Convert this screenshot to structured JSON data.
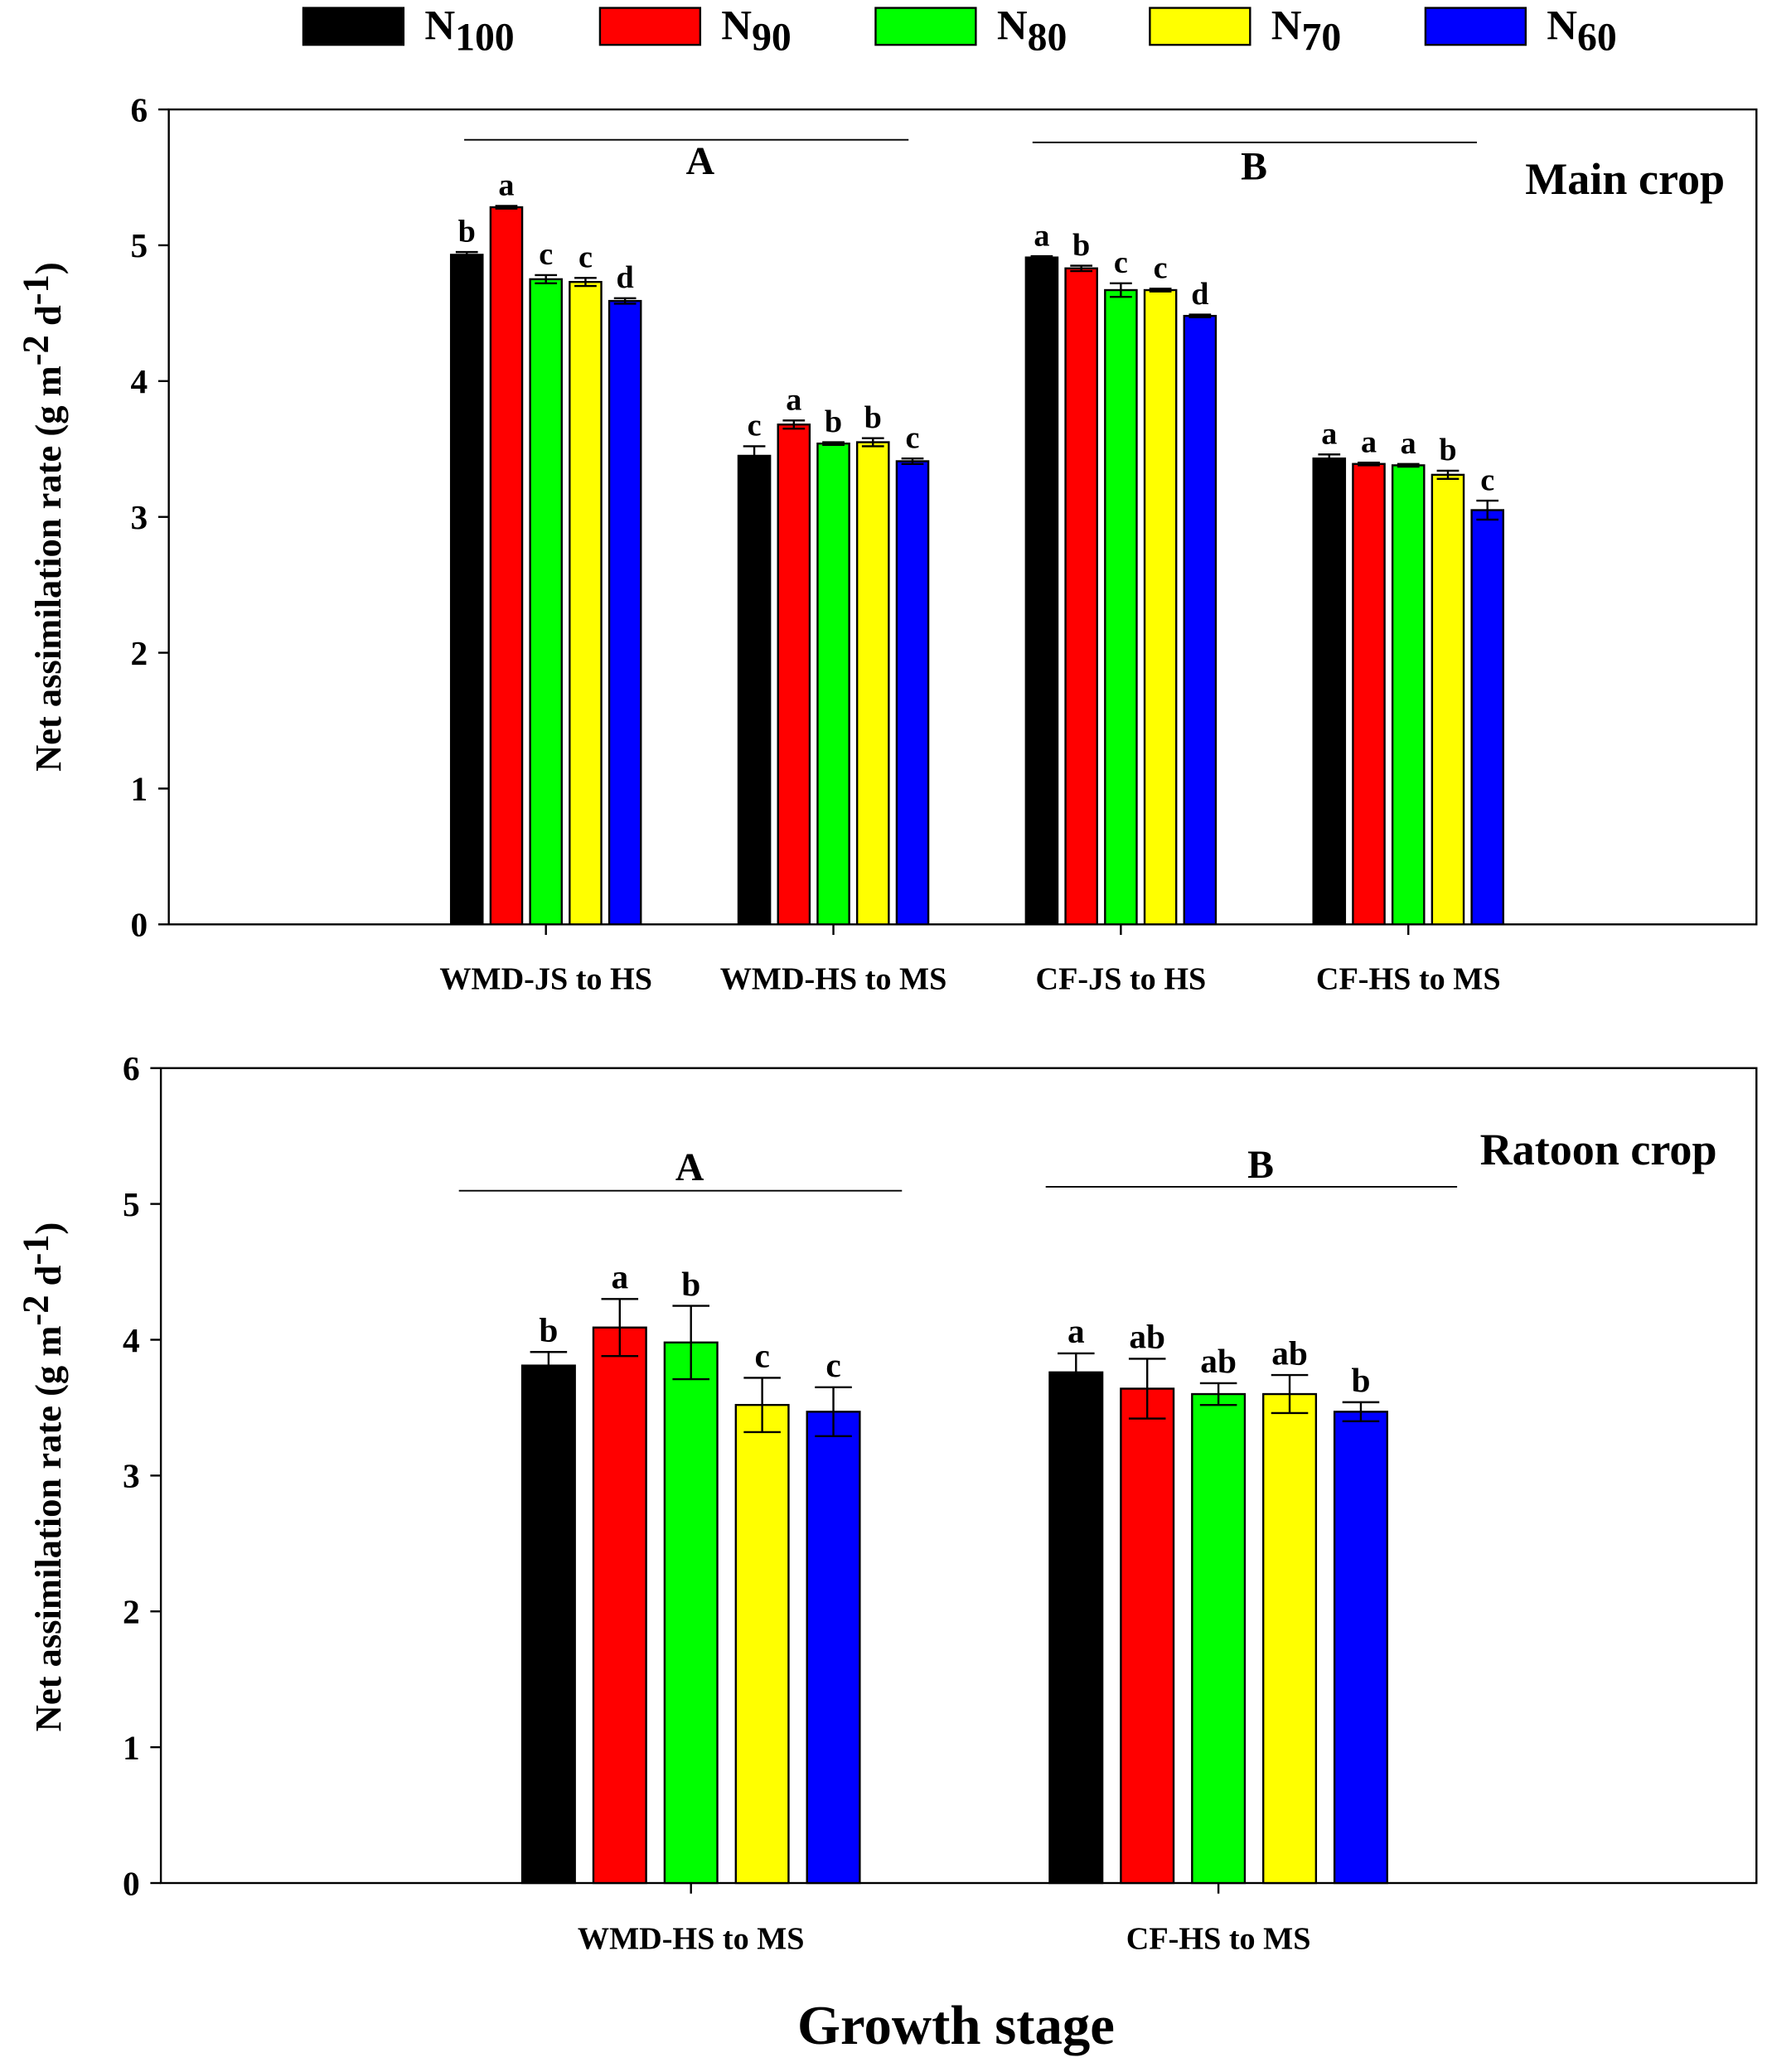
{
  "chart_data": [
    {
      "type": "bar",
      "title": "Main crop",
      "ylabel": "Net assimilation rate (g m-2 d-1)",
      "ylabel_parts": {
        "main": "Net assimilation rate (g m",
        "exp1": "-2",
        "mid": " d",
        "exp2": "-1",
        "end": ")"
      },
      "ylim": [
        0,
        6
      ],
      "yticks": [
        "0",
        "1",
        "2",
        "3",
        "4",
        "5",
        "6"
      ],
      "categories": [
        "WMD-JS to HS",
        "WMD-HS to MS",
        "CF-JS to HS",
        "CF-HS to MS"
      ],
      "group_labels": [
        {
          "label": "A",
          "covers": [
            0,
            1
          ]
        },
        {
          "label": "B",
          "covers": [
            2,
            3
          ]
        }
      ],
      "series": [
        {
          "name": "N100",
          "color": "#000000",
          "values": [
            4.93,
            3.45,
            4.91,
            3.43
          ],
          "errors": [
            0.02,
            0.07,
            0.01,
            0.03
          ],
          "letters": [
            "b",
            "c",
            "a",
            "a"
          ]
        },
        {
          "name": "N90",
          "color": "#ff0000",
          "values": [
            5.28,
            3.68,
            4.83,
            3.39
          ],
          "errors": [
            0.01,
            0.03,
            0.02,
            0.01
          ],
          "letters": [
            "a",
            "a",
            "b",
            "a"
          ]
        },
        {
          "name": "N80",
          "color": "#00ff00",
          "values": [
            4.75,
            3.54,
            4.67,
            3.38
          ],
          "errors": [
            0.03,
            0.01,
            0.05,
            0.01
          ],
          "letters": [
            "c",
            "b",
            "c",
            "a"
          ]
        },
        {
          "name": "N70",
          "color": "#ffff00",
          "values": [
            4.73,
            3.55,
            4.67,
            3.31
          ],
          "errors": [
            0.03,
            0.03,
            0.01,
            0.03
          ],
          "letters": [
            "c",
            "b",
            "c",
            "b"
          ]
        },
        {
          "name": "N60",
          "color": "#0000ff",
          "values": [
            4.59,
            3.41,
            4.48,
            3.05
          ],
          "errors": [
            0.02,
            0.02,
            0.01,
            0.07
          ],
          "letters": [
            "d",
            "c",
            "d",
            "c"
          ]
        }
      ]
    },
    {
      "type": "bar",
      "title": "Ratoon crop",
      "ylabel": "Net assimilation rate (g m-2 d-1)",
      "ylabel_parts": {
        "main": "Net assimilation rate (g m",
        "exp1": "-2",
        "mid": " d",
        "exp2": "-1",
        "end": ")"
      },
      "xlabel": "Growth stage",
      "ylim": [
        0,
        6
      ],
      "yticks": [
        "0",
        "1",
        "2",
        "3",
        "4",
        "5",
        "6"
      ],
      "categories": [
        "WMD-HS to MS",
        "CF-HS to MS"
      ],
      "group_labels": [
        {
          "label": "A",
          "covers": [
            0
          ]
        },
        {
          "label": "B",
          "covers": [
            1
          ]
        }
      ],
      "series": [
        {
          "name": "N100",
          "color": "#000000",
          "values": [
            3.81,
            3.76
          ],
          "errors": [
            0.1,
            0.14
          ],
          "letters": [
            "b",
            "a"
          ]
        },
        {
          "name": "N90",
          "color": "#ff0000",
          "values": [
            4.09,
            3.64
          ],
          "errors": [
            0.21,
            0.22
          ],
          "letters": [
            "a",
            "ab"
          ]
        },
        {
          "name": "N80",
          "color": "#00ff00",
          "values": [
            3.98,
            3.6
          ],
          "errors": [
            0.27,
            0.08
          ],
          "letters": [
            "b",
            "ab"
          ]
        },
        {
          "name": "N70",
          "color": "#ffff00",
          "values": [
            3.52,
            3.6
          ],
          "errors": [
            0.2,
            0.14
          ],
          "letters": [
            "c",
            "ab"
          ]
        },
        {
          "name": "N60",
          "color": "#0000ff",
          "values": [
            3.47,
            3.47
          ],
          "errors": [
            0.18,
            0.07
          ],
          "letters": [
            "c",
            "b"
          ]
        }
      ]
    }
  ],
  "legend": [
    {
      "base": "N",
      "sub": "100",
      "color": "#000000"
    },
    {
      "base": "N",
      "sub": "90",
      "color": "#ff0000"
    },
    {
      "base": "N",
      "sub": "80",
      "color": "#00ff00"
    },
    {
      "base": "N",
      "sub": "70",
      "color": "#ffff00"
    },
    {
      "base": "N",
      "sub": "60",
      "color": "#0000ff"
    }
  ]
}
